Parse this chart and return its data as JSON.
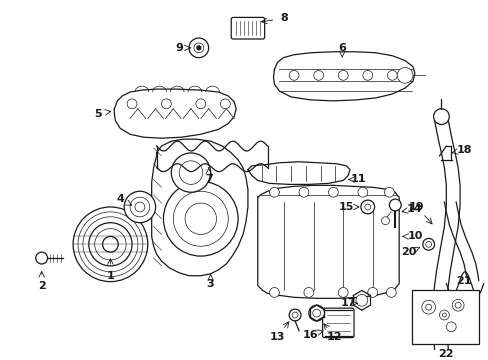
{
  "background_color": "#ffffff",
  "line_color": "#1a1a1a",
  "fig_width": 4.89,
  "fig_height": 3.6,
  "dpi": 100,
  "lw": 0.9,
  "lw_thin": 0.5,
  "lw_thick": 1.5
}
